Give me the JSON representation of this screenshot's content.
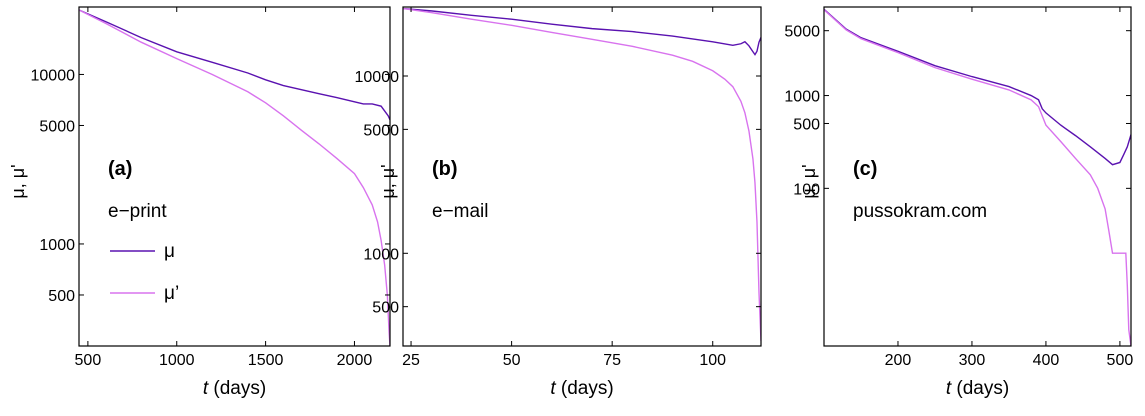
{
  "colors": {
    "mu": "#5a12b0",
    "mu_prime": "#d873ee",
    "axis": "#000000"
  },
  "chart_data": [
    {
      "type": "line",
      "panel_label": "(a)",
      "dataset": "e−print",
      "xlabel_var": "t",
      "xlabel_unit": "(days)",
      "ylabel": "μ, μ'",
      "x_scale": "linear",
      "y_scale": "log",
      "xlim": [
        450,
        2200
      ],
      "ylim": [
        250,
        25000
      ],
      "x_ticks": [
        500,
        1000,
        1500,
        2000
      ],
      "x_tick_labels": [
        "500",
        "1000",
        "1500",
        "2000"
      ],
      "y_ticks": [
        500,
        1000,
        5000,
        10000
      ],
      "y_tick_labels": [
        "500",
        "1000",
        "5000",
        "10000"
      ],
      "legend": {
        "show": true,
        "placement": "left",
        "entries": [
          "μ",
          "μ’"
        ]
      },
      "series": [
        {
          "name": "μ",
          "x": [
            450,
            600,
            800,
            1000,
            1200,
            1400,
            1500,
            1600,
            1800,
            1900,
            2000,
            2050,
            2100,
            2150,
            2190,
            2200
          ],
          "y": [
            24000,
            20500,
            16500,
            13600,
            11800,
            10200,
            9300,
            8600,
            7700,
            7300,
            6900,
            6700,
            6700,
            6500,
            5700,
            5400
          ]
        },
        {
          "name": "μ’",
          "x": [
            450,
            600,
            800,
            1000,
            1200,
            1400,
            1500,
            1600,
            1700,
            1800,
            1900,
            2000,
            2050,
            2100,
            2130,
            2150,
            2170,
            2185,
            2195,
            2200
          ],
          "y": [
            24000,
            20000,
            15500,
            12400,
            10000,
            7900,
            6800,
            5700,
            4700,
            3900,
            3200,
            2600,
            2150,
            1700,
            1350,
            1050,
            750,
            500,
            300,
            250
          ]
        }
      ]
    },
    {
      "type": "line",
      "panel_label": "(b)",
      "dataset": "e−mail",
      "xlabel_var": "t",
      "xlabel_unit": "(days)",
      "ylabel": "μ, μ'",
      "x_scale": "linear",
      "y_scale": "log",
      "xlim": [
        23,
        112
      ],
      "ylim": [
        300,
        24500
      ],
      "x_ticks": [
        25,
        50,
        75,
        100
      ],
      "x_tick_labels": [
        "25",
        "50",
        "75",
        "100"
      ],
      "y_ticks": [
        500,
        1000,
        5000,
        10000
      ],
      "y_tick_labels": [
        "500",
        "1000",
        "5000",
        "10000"
      ],
      "series": [
        {
          "name": "μ",
          "x": [
            23,
            30,
            40,
            50,
            60,
            70,
            80,
            90,
            100,
            105,
            107,
            108,
            109,
            110,
            110.5,
            111,
            111.5,
            112
          ],
          "y": [
            24000,
            23300,
            22000,
            20900,
            19600,
            18500,
            17800,
            16800,
            15600,
            14900,
            15200,
            15600,
            14800,
            13700,
            13200,
            13800,
            15500,
            16500
          ]
        },
        {
          "name": "μ’",
          "x": [
            23,
            30,
            40,
            50,
            60,
            70,
            80,
            90,
            95,
            100,
            103,
            105,
            107,
            108,
            109,
            110,
            110.5,
            111,
            111.5,
            112
          ],
          "y": [
            24000,
            22800,
            20900,
            19300,
            17600,
            16100,
            14700,
            13100,
            12100,
            10700,
            9600,
            8700,
            7200,
            6200,
            4900,
            3400,
            2500,
            1500,
            600,
            320
          ]
        }
      ]
    },
    {
      "type": "line",
      "panel_label": "(c)",
      "dataset": "pussokram.com",
      "xlabel_var": "t",
      "xlabel_unit": "(days)",
      "ylabel": "μ, μ'",
      "x_scale": "linear",
      "y_scale": "log",
      "xlim": [
        100,
        515
      ],
      "ylim": [
        2,
        9000
      ],
      "x_ticks": [
        200,
        300,
        400,
        500
      ],
      "x_tick_labels": [
        "200",
        "300",
        "400",
        "500"
      ],
      "y_ticks": [
        100,
        500,
        1000,
        5000
      ],
      "y_tick_labels": [
        "100",
        "500",
        "1000",
        "5000"
      ],
      "series": [
        {
          "name": "μ",
          "x": [
            100,
            130,
            150,
            200,
            250,
            300,
            350,
            380,
            390,
            395,
            400,
            420,
            440,
            460,
            480,
            490,
            500,
            505,
            510,
            515
          ],
          "y": [
            8500,
            5200,
            4200,
            3000,
            2100,
            1600,
            1250,
            1000,
            900,
            720,
            650,
            480,
            370,
            280,
            210,
            180,
            190,
            230,
            280,
            380
          ]
        },
        {
          "name": "μ’",
          "x": [
            100,
            130,
            150,
            200,
            250,
            300,
            350,
            380,
            390,
            400,
            420,
            440,
            460,
            470,
            480,
            485,
            490,
            500,
            505,
            508,
            510,
            512,
            515
          ],
          "y": [
            8400,
            5100,
            4100,
            2900,
            2000,
            1500,
            1150,
            900,
            760,
            480,
            320,
            210,
            140,
            100,
            60,
            35,
            20,
            20,
            20,
            20,
            9,
            3,
            2
          ]
        }
      ]
    }
  ]
}
